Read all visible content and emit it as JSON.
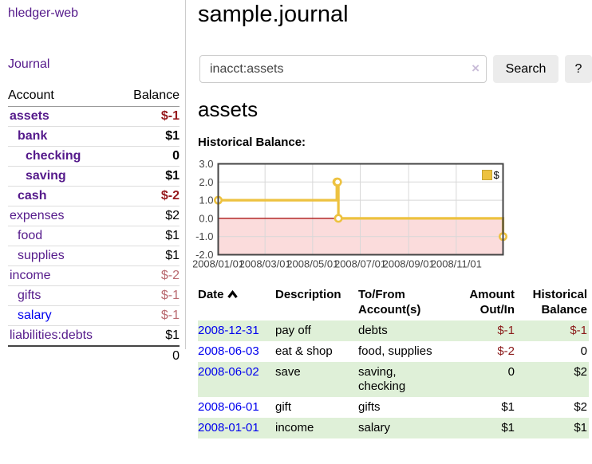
{
  "sidebar": {
    "brand": "hledger-web",
    "journal_link": "Journal",
    "accounts_table": {
      "headers": {
        "account": "Account",
        "balance": "Balance"
      },
      "rows": [
        {
          "name": "assets",
          "depth": 1,
          "bold": true,
          "balance": "$-1",
          "balance_style": "neg-bold"
        },
        {
          "name": "bank",
          "depth": 2,
          "bold": true,
          "balance": "$1",
          "balance_style": "pos"
        },
        {
          "name": "checking",
          "depth": 3,
          "bold": true,
          "balance": "0",
          "balance_style": "pos"
        },
        {
          "name": "saving",
          "depth": 3,
          "bold": true,
          "balance": "$1",
          "balance_style": "pos"
        },
        {
          "name": "cash",
          "depth": 2,
          "bold": true,
          "balance": "$-2",
          "balance_style": "neg-bold"
        },
        {
          "name": "expenses",
          "depth": 1,
          "bold": false,
          "balance": "$2",
          "balance_style": "pos"
        },
        {
          "name": "food",
          "depth": 2,
          "bold": false,
          "balance": "$1",
          "balance_style": "pos"
        },
        {
          "name": "supplies",
          "depth": 2,
          "bold": false,
          "balance": "$1",
          "balance_style": "pos"
        },
        {
          "name": "income",
          "depth": 1,
          "bold": false,
          "balance": "$-2",
          "balance_style": "neg-soft"
        },
        {
          "name": "gifts",
          "depth": 2,
          "bold": false,
          "balance": "$-1",
          "balance_style": "neg-soft"
        },
        {
          "name": "salary",
          "depth": 2,
          "bold": false,
          "balance": "$-1",
          "balance_style": "neg-soft",
          "link_color": "blue"
        },
        {
          "name": "liabilities:debts",
          "depth": 1,
          "bold": false,
          "balance": "$1",
          "balance_style": "pos"
        }
      ],
      "total": "0"
    }
  },
  "main": {
    "title": "sample.journal",
    "search": {
      "value": "inacct:assets",
      "clear_icon": "×",
      "search_button": "Search",
      "help_button": "?"
    },
    "account_heading": "assets",
    "chart_label": "Historical Balance:"
  },
  "chart_data": {
    "type": "line",
    "step": true,
    "title": "Historical Balance",
    "series": [
      {
        "name": "$",
        "color": "#edc240",
        "points": [
          {
            "x": "2008-01-01",
            "y": 1
          },
          {
            "x": "2008-06-01",
            "y": 2
          },
          {
            "x": "2008-06-02",
            "y": 2
          },
          {
            "x": "2008-06-03",
            "y": 0
          },
          {
            "x": "2008-12-31",
            "y": -1
          }
        ]
      }
    ],
    "xlim": [
      "2008-01-01",
      "2008-12-31"
    ],
    "ylim": [
      -2,
      3
    ],
    "yticks": [
      "3.0",
      "2.0",
      "1.0",
      "0.0",
      "-1.0",
      "-2.0"
    ],
    "ytick_values": [
      3,
      2,
      1,
      0,
      -1,
      -2
    ],
    "xticks": [
      "2008/01/01",
      "2008/03/01",
      "2008/05/01",
      "2008/07/01",
      "2008/09/01",
      "2008/11/01"
    ],
    "grid": true,
    "legend_position": "top-right",
    "negative_region_color": "#fbdcdc",
    "zero_line_color": "#a40000",
    "border_color": "#444444",
    "grid_color": "#d8d8d8"
  },
  "register": {
    "headers": [
      {
        "line1": "Date",
        "line2": "",
        "align": "left",
        "sorted": true
      },
      {
        "line1": "Description",
        "line2": "",
        "align": "left"
      },
      {
        "line1": "To/From",
        "line2": "Account(s)",
        "align": "left"
      },
      {
        "line1": "Amount",
        "line2": "Out/In",
        "align": "right"
      },
      {
        "line1": "Historical",
        "line2": "Balance",
        "align": "right"
      }
    ],
    "rows": [
      {
        "date": "2008-12-31",
        "description": "pay off",
        "accounts": "debts",
        "amount": "$-1",
        "amount_neg": true,
        "balance": "$-1",
        "balance_neg": true,
        "green": true
      },
      {
        "date": "2008-06-03",
        "description": "eat & shop",
        "accounts": "food, supplies",
        "amount": "$-2",
        "amount_neg": true,
        "balance": "0",
        "balance_neg": false,
        "green": false
      },
      {
        "date": "2008-06-02",
        "description": "save",
        "accounts": "saving, checking",
        "amount": "0",
        "amount_neg": false,
        "balance": "$2",
        "balance_neg": false,
        "green": true
      },
      {
        "date": "2008-06-01",
        "description": "gift",
        "accounts": "gifts",
        "amount": "$1",
        "amount_neg": false,
        "balance": "$2",
        "balance_neg": false,
        "green": false
      },
      {
        "date": "2008-01-01",
        "description": "income",
        "accounts": "salary",
        "amount": "$1",
        "amount_neg": false,
        "balance": "$1",
        "balance_neg": false,
        "green": true
      }
    ]
  }
}
